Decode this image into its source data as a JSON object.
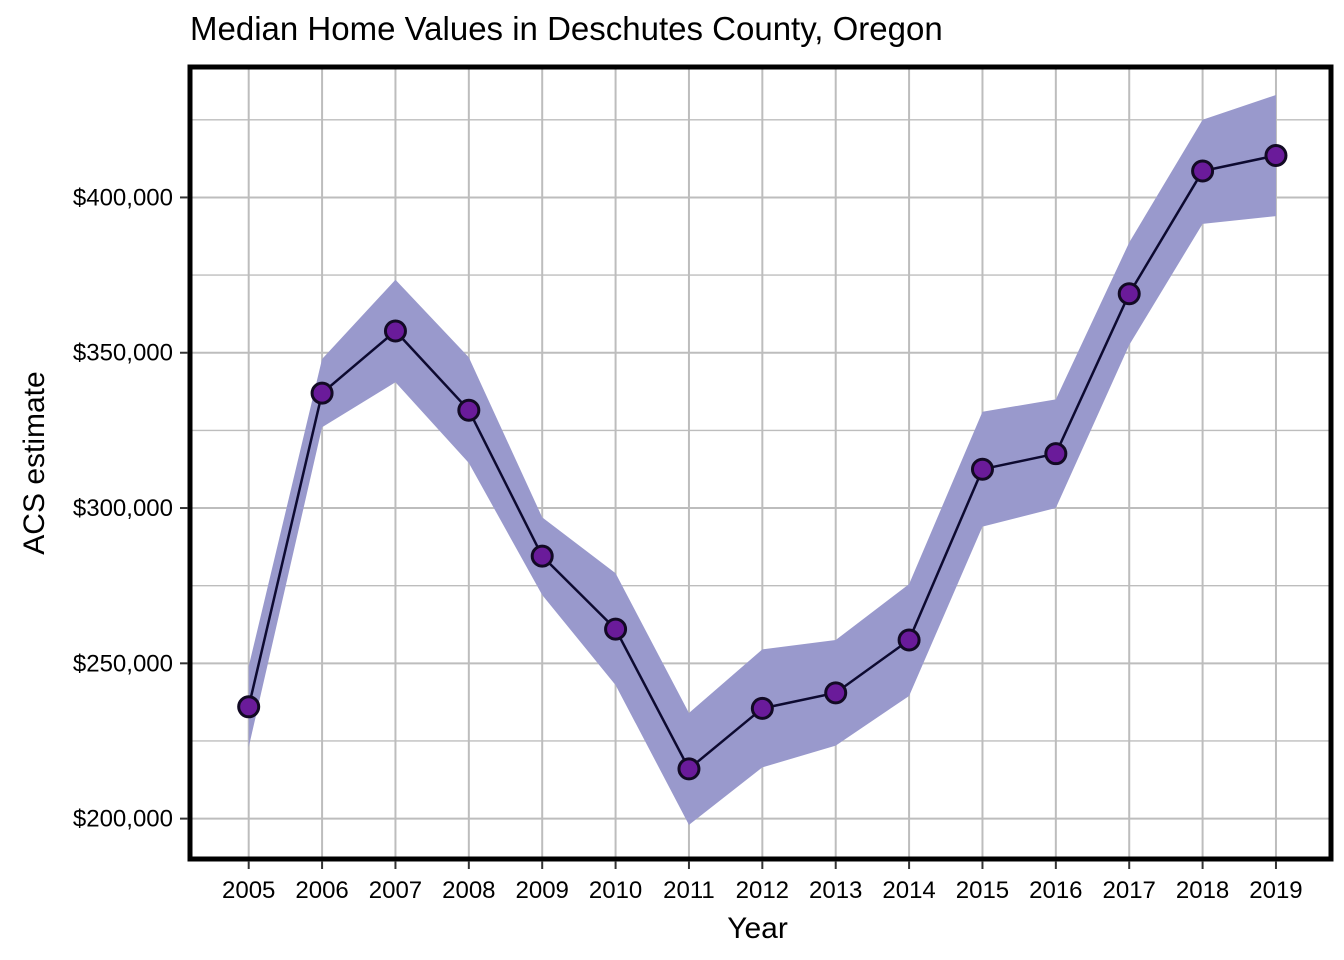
{
  "chart_data": {
    "type": "line",
    "title": "Median Home Values in Deschutes County, Oregon",
    "xlabel": "Year",
    "ylabel": "ACS estimate",
    "x": [
      2005,
      2006,
      2007,
      2008,
      2009,
      2010,
      2011,
      2012,
      2013,
      2014,
      2015,
      2016,
      2017,
      2018,
      2019
    ],
    "x_tick_labels": [
      "2005",
      "2006",
      "2007",
      "2008",
      "2009",
      "2010",
      "2011",
      "2012",
      "2013",
      "2014",
      "2015",
      "2016",
      "2017",
      "2018",
      "2019"
    ],
    "series": [
      {
        "values": [
          236000,
          337000,
          357000,
          331500,
          284500,
          261000,
          216000,
          235500,
          240500,
          257500,
          312500,
          317500,
          369000,
          408500,
          413500
        ],
        "lower": [
          223000,
          326000,
          340500,
          314500,
          272000,
          243000,
          198000,
          216500,
          223500,
          239500,
          294000,
          300000,
          352500,
          391500,
          394000
        ],
        "upper": [
          249000,
          348000,
          373500,
          348500,
          297000,
          279000,
          234000,
          254500,
          257500,
          275500,
          331000,
          335000,
          385500,
          425000,
          433000
        ]
      }
    ],
    "y_ticks": [
      200000,
      250000,
      300000,
      350000,
      400000
    ],
    "y_tick_labels": [
      "$200,000",
      "$250,000",
      "$300,000",
      "$350,000",
      "$400,000"
    ],
    "ylim": [
      187000,
      442000
    ],
    "xlim": [
      2004.2,
      2019.75
    ],
    "grid": true,
    "legend": "none",
    "colors": {
      "band": "#9999cc",
      "line": "#0d0a30",
      "point_fill": "#6a1b9a",
      "point_edge": "#120a24",
      "grid": "#bdbdbd",
      "frame": "#000000"
    }
  }
}
